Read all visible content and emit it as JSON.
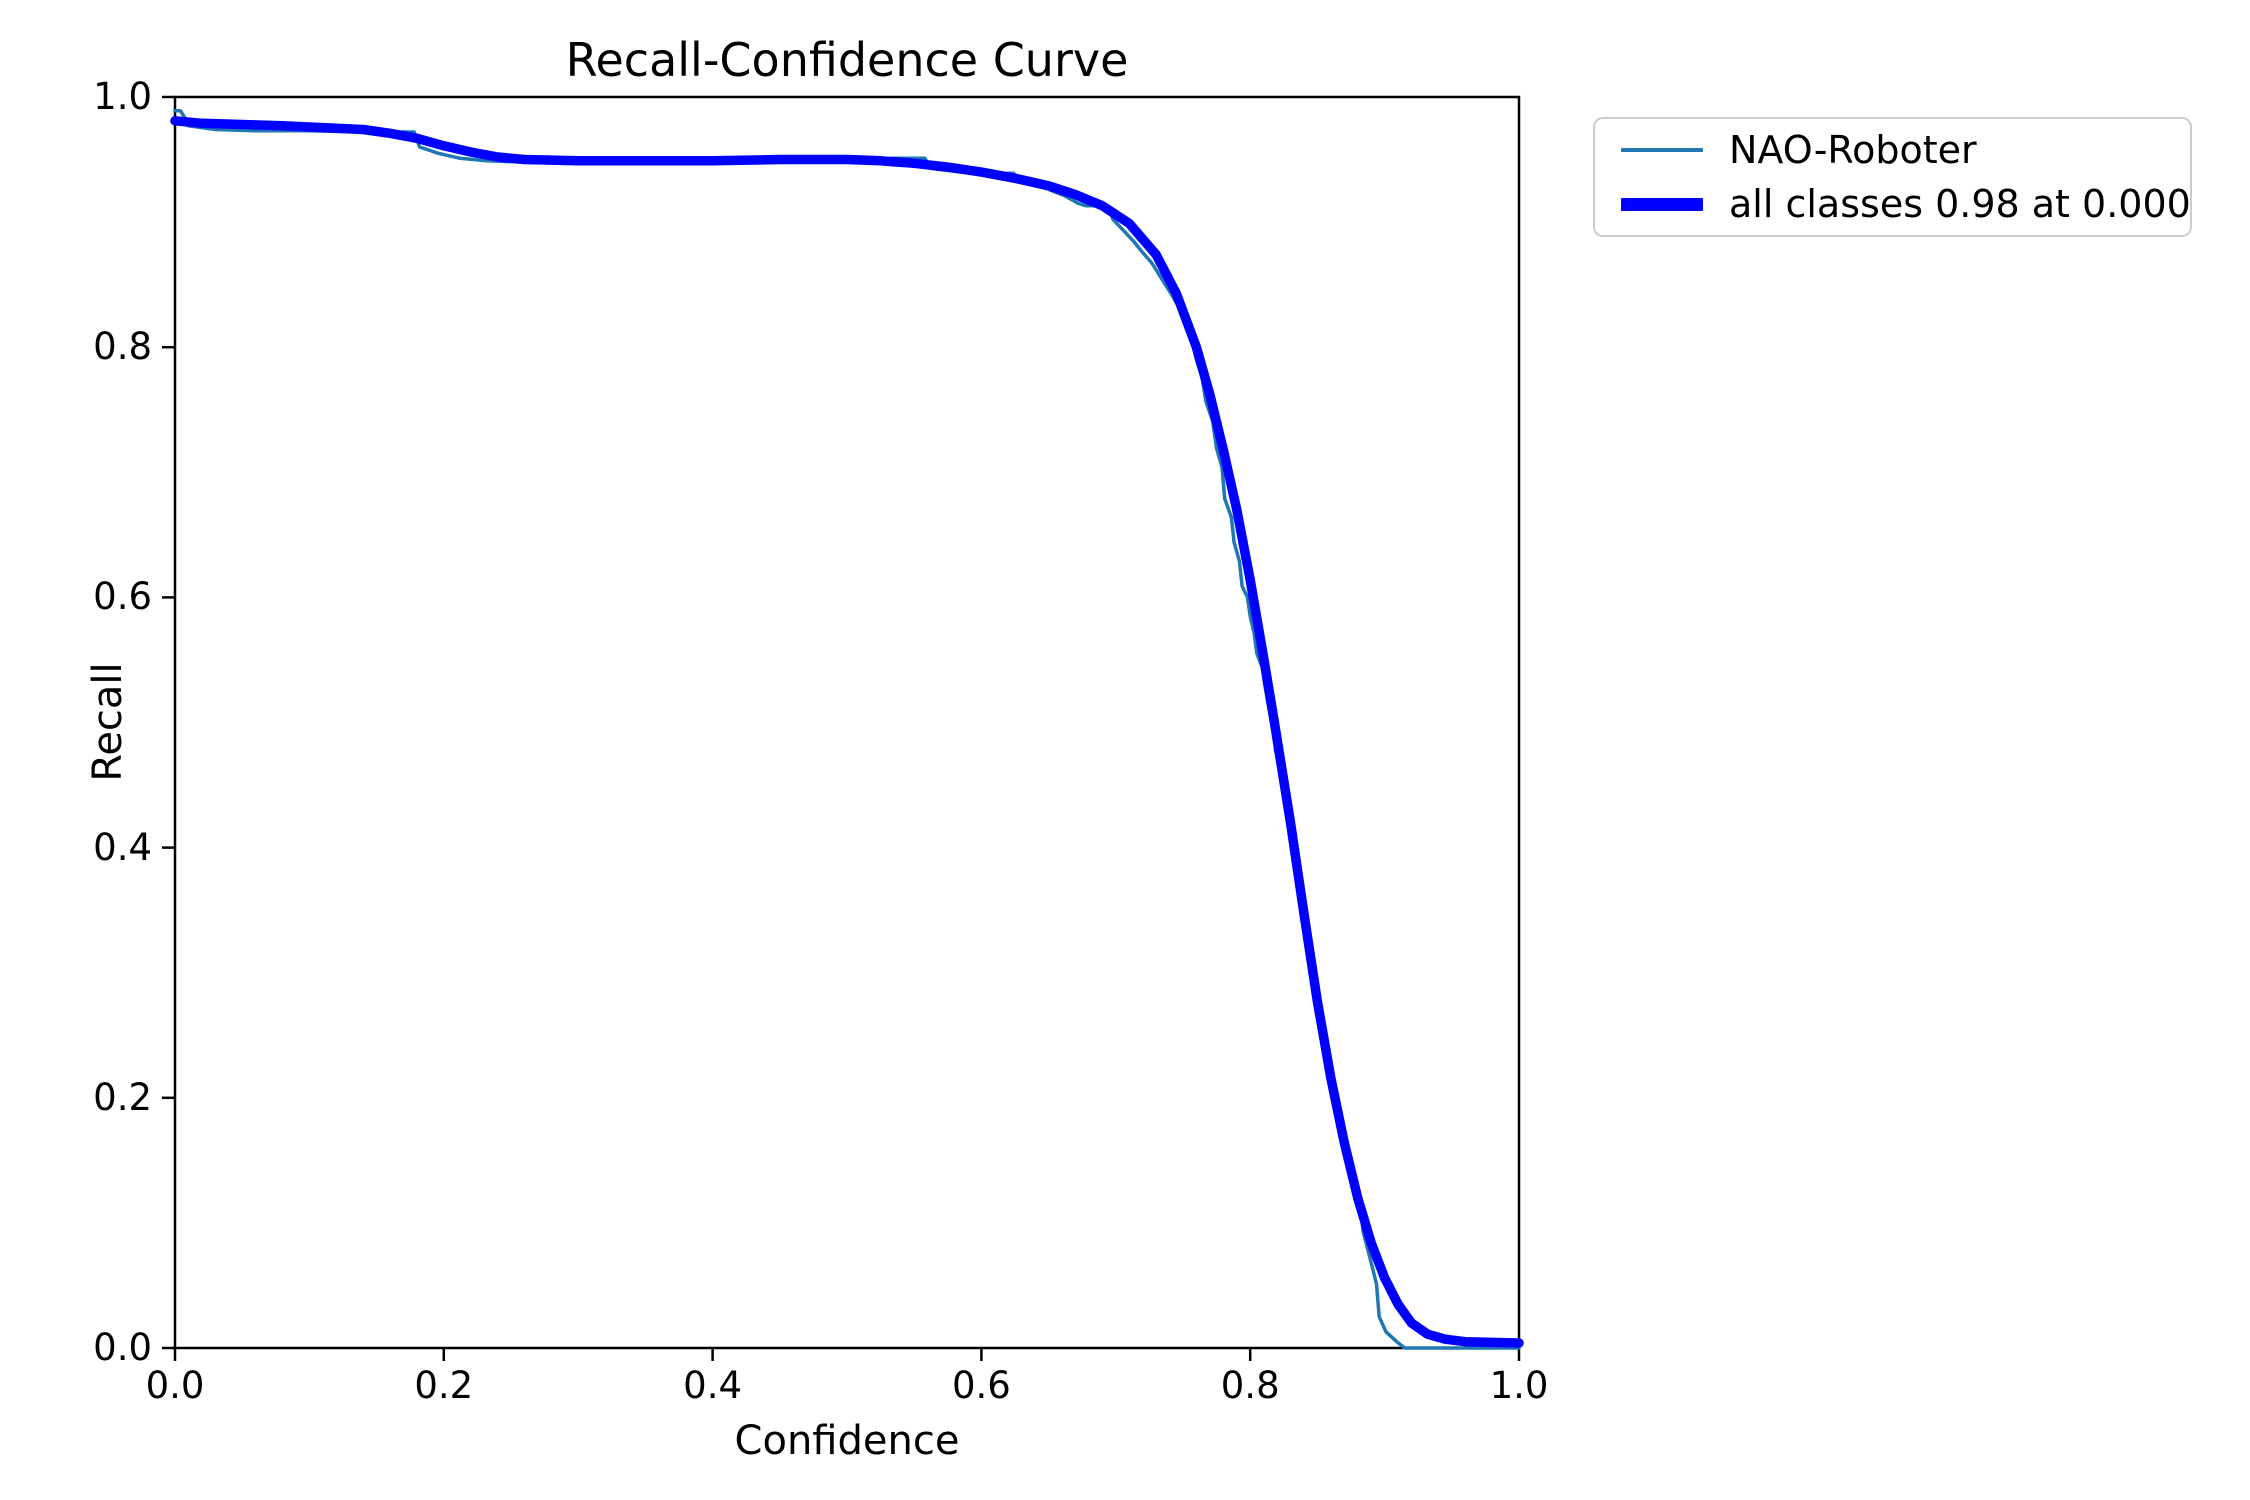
{
  "page": {
    "background": "#ffffff"
  },
  "chart_data": {
    "type": "line",
    "title": "Recall-Confidence Curve",
    "xlabel": "Confidence",
    "ylabel": "Recall",
    "xlim": [
      0.0,
      1.0
    ],
    "ylim": [
      0.0,
      1.0
    ],
    "grid": false,
    "x_tick_labels": [
      "0.0",
      "0.2",
      "0.4",
      "0.6",
      "0.8",
      "1.0"
    ],
    "y_tick_labels": [
      "0.0",
      "0.2",
      "0.4",
      "0.6",
      "0.8",
      "1.0"
    ],
    "x_tick_values": [
      0.0,
      0.2,
      0.4,
      0.6,
      0.8,
      1.0
    ],
    "y_tick_values": [
      0.0,
      0.2,
      0.4,
      0.6,
      0.8,
      1.0
    ],
    "legend": {
      "position": "outside-upper-right",
      "entries": [
        {
          "label": "NAO-Roboter",
          "color": "#1f77b4",
          "line": "thin"
        },
        {
          "label": "all classes 0.98 at 0.000",
          "color": "#0000ff",
          "line": "thick"
        }
      ]
    },
    "annotation": {
      "max_mean_recall": 0.98,
      "at_confidence": 0.0
    },
    "series": [
      {
        "name": "NAO-Roboter",
        "color": "#1f77b4",
        "linewidth": 3.5,
        "points": [
          [
            0.0,
            0.989
          ],
          [
            0.004,
            0.989
          ],
          [
            0.007,
            0.984
          ],
          [
            0.01,
            0.977
          ],
          [
            0.03,
            0.974
          ],
          [
            0.06,
            0.973
          ],
          [
            0.1,
            0.973
          ],
          [
            0.14,
            0.972
          ],
          [
            0.178,
            0.972
          ],
          [
            0.182,
            0.96
          ],
          [
            0.196,
            0.955
          ],
          [
            0.212,
            0.951
          ],
          [
            0.232,
            0.949
          ],
          [
            0.26,
            0.948
          ],
          [
            0.3,
            0.948
          ],
          [
            0.35,
            0.948
          ],
          [
            0.4,
            0.948
          ],
          [
            0.45,
            0.948
          ],
          [
            0.49,
            0.949
          ],
          [
            0.52,
            0.95
          ],
          [
            0.535,
            0.951
          ],
          [
            0.558,
            0.951
          ],
          [
            0.562,
            0.943
          ],
          [
            0.585,
            0.94
          ],
          [
            0.605,
            0.939
          ],
          [
            0.624,
            0.939
          ],
          [
            0.628,
            0.932
          ],
          [
            0.648,
            0.927
          ],
          [
            0.662,
            0.921
          ],
          [
            0.672,
            0.915
          ],
          [
            0.678,
            0.913
          ],
          [
            0.694,
            0.913
          ],
          [
            0.698,
            0.902
          ],
          [
            0.706,
            0.893
          ],
          [
            0.713,
            0.885
          ],
          [
            0.719,
            0.877
          ],
          [
            0.727,
            0.867
          ],
          [
            0.734,
            0.855
          ],
          [
            0.741,
            0.843
          ],
          [
            0.747,
            0.832
          ],
          [
            0.752,
            0.818
          ],
          [
            0.757,
            0.804
          ],
          [
            0.76,
            0.79
          ],
          [
            0.764,
            0.777
          ],
          [
            0.767,
            0.757
          ],
          [
            0.772,
            0.741
          ],
          [
            0.775,
            0.719
          ],
          [
            0.779,
            0.704
          ],
          [
            0.781,
            0.679
          ],
          [
            0.786,
            0.664
          ],
          [
            0.788,
            0.644
          ],
          [
            0.792,
            0.629
          ],
          [
            0.794,
            0.609
          ],
          [
            0.798,
            0.6
          ],
          [
            0.8,
            0.585
          ],
          [
            0.803,
            0.571
          ],
          [
            0.805,
            0.555
          ],
          [
            0.809,
            0.544
          ],
          [
            0.811,
            0.529
          ],
          [
            0.814,
            0.511
          ],
          [
            0.817,
            0.497
          ],
          [
            0.819,
            0.477
          ],
          [
            0.823,
            0.461
          ],
          [
            0.825,
            0.439
          ],
          [
            0.829,
            0.424
          ],
          [
            0.831,
            0.401
          ],
          [
            0.835,
            0.385
          ],
          [
            0.837,
            0.361
          ],
          [
            0.841,
            0.344
          ],
          [
            0.843,
            0.321
          ],
          [
            0.847,
            0.305
          ],
          [
            0.849,
            0.283
          ],
          [
            0.852,
            0.267
          ],
          [
            0.854,
            0.249
          ],
          [
            0.857,
            0.239
          ],
          [
            0.86,
            0.227
          ],
          [
            0.862,
            0.214
          ],
          [
            0.865,
            0.201
          ],
          [
            0.867,
            0.185
          ],
          [
            0.87,
            0.174
          ],
          [
            0.872,
            0.158
          ],
          [
            0.876,
            0.147
          ],
          [
            0.878,
            0.137
          ],
          [
            0.88,
            0.127
          ],
          [
            0.882,
            0.115
          ],
          [
            0.884,
            0.093
          ],
          [
            0.887,
            0.081
          ],
          [
            0.891,
            0.064
          ],
          [
            0.894,
            0.051
          ],
          [
            0.896,
            0.025
          ],
          [
            0.901,
            0.013
          ],
          [
            0.909,
            0.005
          ],
          [
            0.915,
            0.0
          ],
          [
            0.94,
            0.0
          ],
          [
            1.0,
            0.0
          ]
        ]
      },
      {
        "name": "all classes 0.98 at 0.000",
        "color": "#0000ff",
        "linewidth": 9.5,
        "points": [
          [
            0.0,
            0.981
          ],
          [
            0.02,
            0.979
          ],
          [
            0.05,
            0.978
          ],
          [
            0.08,
            0.977
          ],
          [
            0.1,
            0.976
          ],
          [
            0.12,
            0.975
          ],
          [
            0.14,
            0.974
          ],
          [
            0.16,
            0.971
          ],
          [
            0.18,
            0.967
          ],
          [
            0.2,
            0.961
          ],
          [
            0.22,
            0.956
          ],
          [
            0.24,
            0.952
          ],
          [
            0.26,
            0.95
          ],
          [
            0.3,
            0.949
          ],
          [
            0.35,
            0.949
          ],
          [
            0.4,
            0.949
          ],
          [
            0.45,
            0.95
          ],
          [
            0.5,
            0.95
          ],
          [
            0.525,
            0.949
          ],
          [
            0.55,
            0.947
          ],
          [
            0.575,
            0.944
          ],
          [
            0.6,
            0.94
          ],
          [
            0.625,
            0.935
          ],
          [
            0.65,
            0.929
          ],
          [
            0.67,
            0.922
          ],
          [
            0.69,
            0.913
          ],
          [
            0.71,
            0.899
          ],
          [
            0.73,
            0.874
          ],
          [
            0.745,
            0.843
          ],
          [
            0.76,
            0.8
          ],
          [
            0.77,
            0.762
          ],
          [
            0.78,
            0.718
          ],
          [
            0.79,
            0.67
          ],
          [
            0.8,
            0.614
          ],
          [
            0.81,
            0.552
          ],
          [
            0.818,
            0.5
          ],
          [
            0.83,
            0.42
          ],
          [
            0.84,
            0.347
          ],
          [
            0.85,
            0.277
          ],
          [
            0.86,
            0.216
          ],
          [
            0.87,
            0.164
          ],
          [
            0.88,
            0.12
          ],
          [
            0.89,
            0.084
          ],
          [
            0.9,
            0.056
          ],
          [
            0.91,
            0.035
          ],
          [
            0.92,
            0.02
          ],
          [
            0.932,
            0.011
          ],
          [
            0.945,
            0.007
          ],
          [
            0.96,
            0.005
          ],
          [
            1.0,
            0.004
          ]
        ]
      }
    ]
  }
}
